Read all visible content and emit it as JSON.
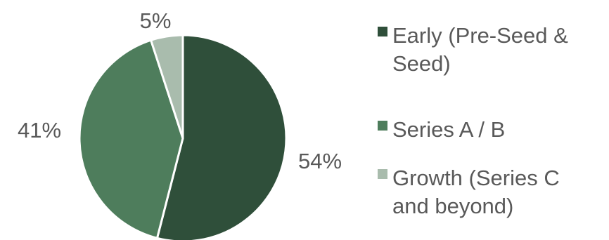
{
  "chart_data": {
    "type": "pie",
    "slices": [
      {
        "name": "Early (Pre-Seed & Seed)",
        "value": 54,
        "label": "54%",
        "color": "#2f4f3a",
        "legend_lines": [
          "Early (Pre-Seed &",
          "Seed)"
        ]
      },
      {
        "name": "Series A / B",
        "value": 41,
        "label": "41%",
        "color": "#4e7d5c",
        "legend_lines": [
          "Series A / B"
        ]
      },
      {
        "name": "Growth (Series C and beyond)",
        "value": 5,
        "label": "5%",
        "color": "#a9bcad",
        "legend_lines": [
          "Growth (Series C",
          "and beyond)"
        ]
      }
    ],
    "legend_position": "right",
    "slice_border_color": "#ffffff",
    "label_color": "#595959"
  }
}
